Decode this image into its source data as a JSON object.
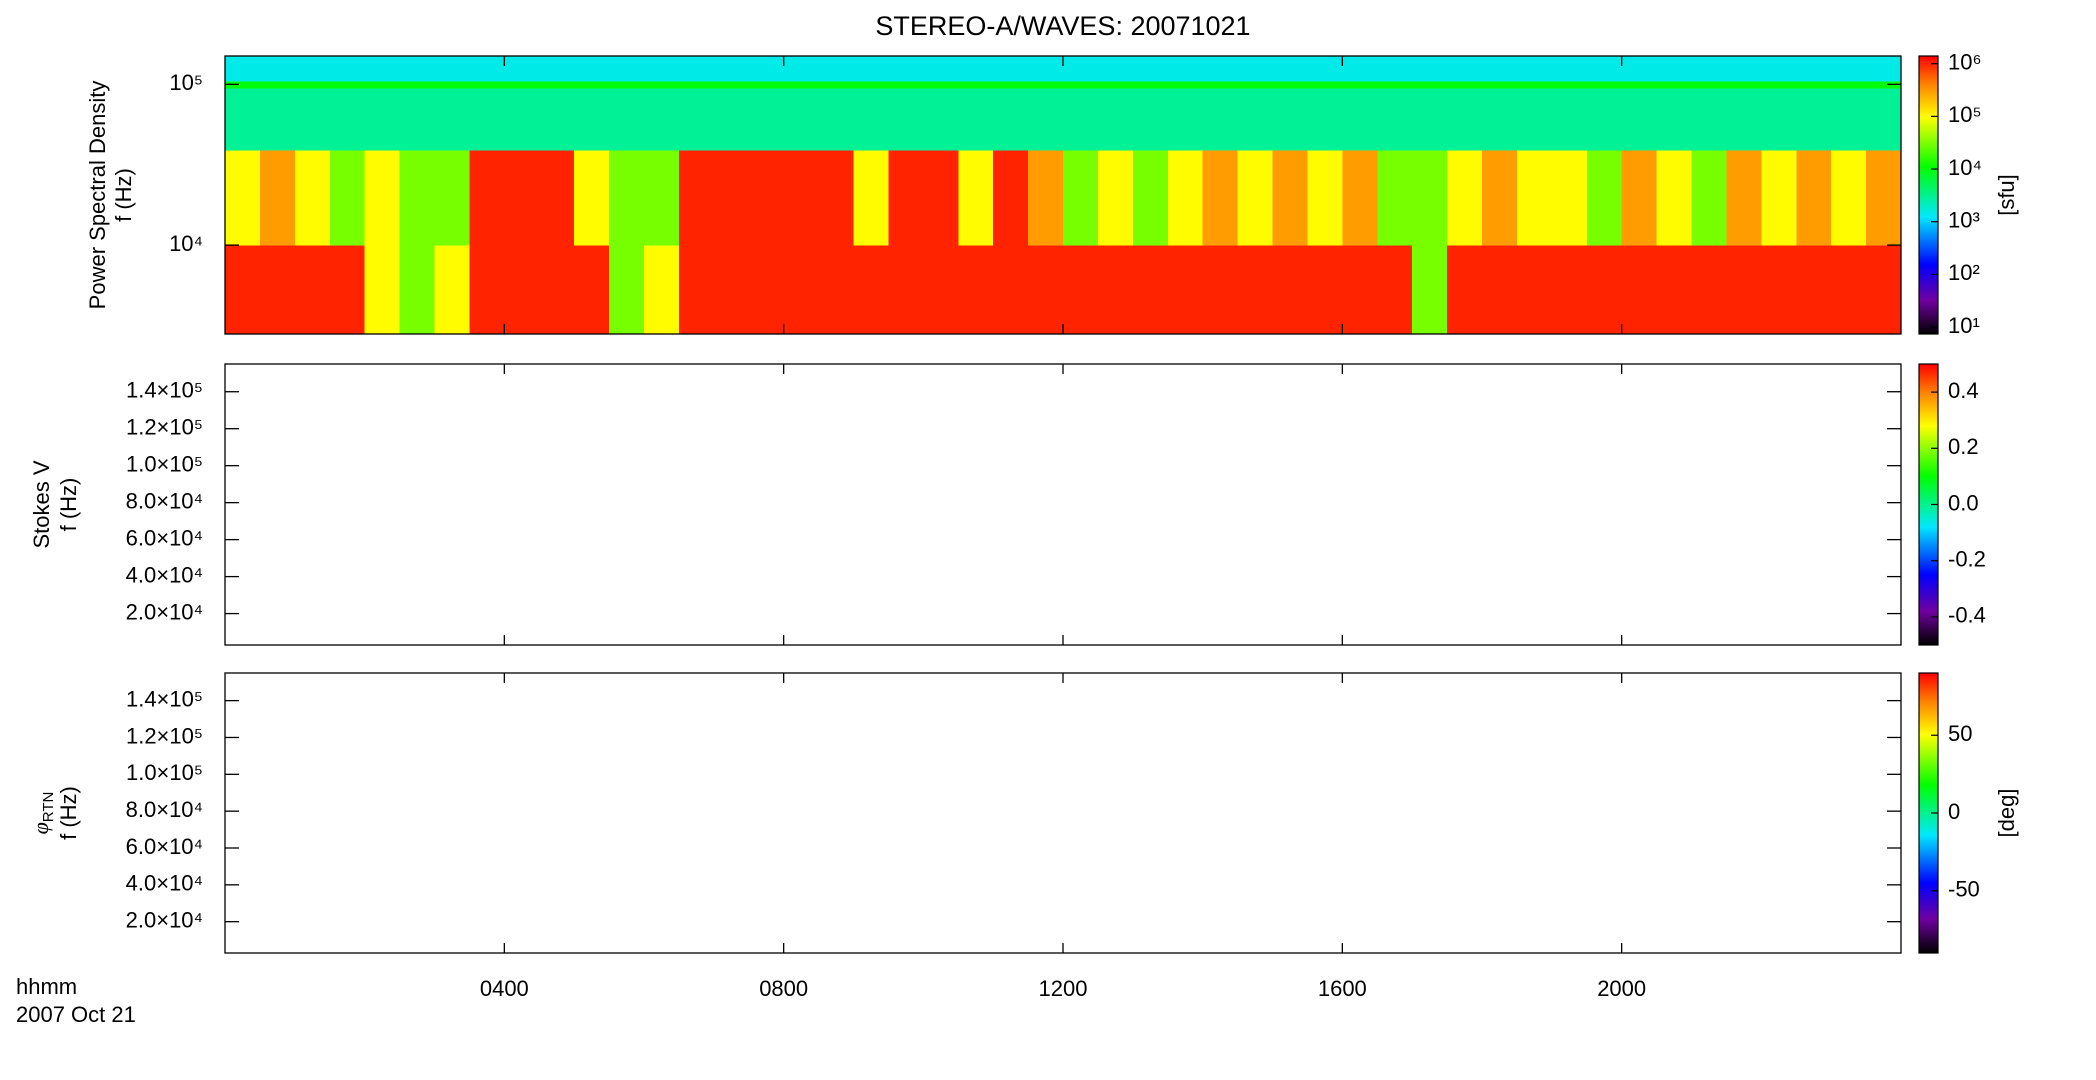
{
  "chart_data": [
    {
      "type": "heatmap",
      "title": "STEREO-A/WAVES: 20071021",
      "ylabel": "Power Spectral Density",
      "ylabel2": "f (Hz)",
      "zlabel": "[sfu]",
      "xlim": [
        0,
        24
      ],
      "xticks": [
        4,
        8,
        12,
        16,
        20
      ],
      "ylim": [
        2800,
        150000
      ],
      "ylog": true,
      "yticks": [
        {
          "value": 10000,
          "label": "10⁴"
        },
        {
          "value": 100000,
          "label": "10⁵"
        }
      ],
      "zlim": [
        7.4,
        1400000
      ],
      "zlog": true,
      "zticks": [
        {
          "value": 10,
          "label": "10¹"
        },
        {
          "value": 100,
          "label": "10²"
        },
        {
          "value": 1000,
          "label": "10³"
        },
        {
          "value": 10000,
          "label": "10⁴"
        },
        {
          "value": 100000,
          "label": "10⁵"
        },
        {
          "value": 1000000,
          "label": "10⁶"
        }
      ],
      "colormap": {
        "positions": [
          0,
          0.12,
          0.25,
          0.42,
          0.6,
          0.78,
          0.9,
          1
        ],
        "colors": [
          "#000000",
          "#7000a0",
          "#0000ff",
          "#00e8ff",
          "#00ff00",
          "#ffff00",
          "#ff8000",
          "#ff0000"
        ]
      },
      "x": [
        0,
        0.5,
        1,
        1.5,
        2,
        2.5,
        3,
        3.5,
        4,
        4.5,
        5,
        5.5,
        6,
        6.5,
        7,
        7.5,
        8,
        8.5,
        9,
        9.5,
        10,
        10.5,
        11,
        11.5,
        12,
        12.5,
        13,
        13.5,
        14,
        14.5,
        15,
        15.5,
        16,
        16.5,
        17,
        17.5,
        18,
        18.5,
        19,
        19.5,
        20,
        20.5,
        21,
        21.5,
        22,
        22.5,
        23,
        23.5,
        24
      ],
      "y": [
        2800,
        10000,
        39000,
        95000,
        105000,
        150000
      ],
      "z": [
        [
          1000000,
          1000000,
          1000000,
          1000000,
          100000,
          30000,
          100000,
          1000000,
          1000000,
          1000000,
          1000000,
          30000,
          100000,
          1000000,
          1000000,
          1000000,
          1000000,
          1000000,
          1000000,
          1000000,
          1000000,
          1000000,
          1000000,
          1000000,
          1000000,
          1000000,
          1000000,
          1000000,
          1000000,
          1000000,
          1000000,
          1000000,
          1000000,
          1000000,
          30000,
          1000000,
          1000000,
          1000000,
          1000000,
          1000000,
          1000000,
          1000000,
          1000000,
          1000000,
          1000000,
          1000000,
          1000000,
          1000000
        ],
        [
          100000,
          300000,
          100000,
          30000,
          100000,
          30000,
          30000,
          1000000,
          1000000,
          1000000,
          100000,
          30000,
          30000,
          1000000,
          1000000,
          1000000,
          1000000,
          1000000,
          100000,
          1000000,
          1000000,
          100000,
          1000000,
          300000,
          30000,
          100000,
          30000,
          100000,
          300000,
          100000,
          300000,
          100000,
          300000,
          30000,
          30000,
          100000,
          300000,
          100000,
          100000,
          30000,
          300000,
          100000,
          30000,
          300000,
          100000,
          300000,
          100000,
          300000
        ],
        [
          3000,
          3000,
          3000,
          3000,
          3000,
          3000,
          3000,
          3000,
          3000,
          3000,
          3000,
          3000,
          3000,
          3000,
          3000,
          3000,
          3000,
          3000,
          3000,
          3000,
          3000,
          3000,
          3000,
          3000,
          3000,
          3000,
          3000,
          3000,
          3000,
          3000,
          3000,
          3000,
          3000,
          3000,
          3000,
          3000,
          3000,
          3000,
          3000,
          3000,
          3000,
          3000,
          3000,
          3000,
          3000,
          3000,
          3000,
          3000
        ],
        [
          10000,
          10000,
          10000,
          10000,
          10000,
          10000,
          10000,
          10000,
          10000,
          10000,
          10000,
          10000,
          10000,
          10000,
          10000,
          10000,
          10000,
          10000,
          10000,
          10000,
          10000,
          10000,
          10000,
          10000,
          10000,
          10000,
          10000,
          10000,
          10000,
          10000,
          10000,
          10000,
          10000,
          10000,
          10000,
          10000,
          10000,
          10000,
          10000,
          10000,
          10000,
          10000,
          10000,
          10000,
          10000,
          10000,
          10000,
          10000
        ],
        [
          1500,
          1500,
          1500,
          1500,
          1500,
          1500,
          1500,
          1500,
          1500,
          1500,
          1500,
          1500,
          1500,
          1500,
          1500,
          1500,
          1500,
          1500,
          1500,
          1500,
          1500,
          1500,
          1500,
          1500,
          1500,
          1500,
          1500,
          1500,
          1500,
          1500,
          1500,
          1500,
          1500,
          1500,
          1500,
          1500,
          1500,
          1500,
          1500,
          1500,
          1500,
          1500,
          1500,
          1500,
          1500,
          1500,
          1500,
          1500
        ]
      ]
    },
    {
      "type": "heatmap",
      "ylabel": "Stokes V",
      "ylabel2": "f (Hz)",
      "xlim": [
        0,
        24
      ],
      "xticks": [
        4,
        8,
        12,
        16,
        20
      ],
      "ylim": [
        3000,
        155000
      ],
      "yticks": [
        {
          "value": 20000,
          "label": "2.0×10⁴"
        },
        {
          "value": 40000,
          "label": "4.0×10⁴"
        },
        {
          "value": 60000,
          "label": "6.0×10⁴"
        },
        {
          "value": 80000,
          "label": "8.0×10⁴"
        },
        {
          "value": 100000,
          "label": "1.0×10⁵"
        },
        {
          "value": 120000,
          "label": "1.2×10⁵"
        },
        {
          "value": 140000,
          "label": "1.4×10⁵"
        }
      ],
      "zlim": [
        -0.5,
        0.5
      ],
      "zticks": [
        -0.4,
        -0.2,
        {
          "value": 0,
          "label": "0.0"
        },
        0.2,
        0.4
      ],
      "colormap": {
        "positions": [
          0,
          0.12,
          0.25,
          0.42,
          0.6,
          0.78,
          0.9,
          1
        ],
        "colors": [
          "#000000",
          "#7000a0",
          "#0000ff",
          "#00e8ff",
          "#00ff00",
          "#ffff00",
          "#ff8000",
          "#ff0000"
        ]
      }
    },
    {
      "type": "heatmap",
      "ylabel": "φ",
      "ylabel_sub": "RTN",
      "ylabel2": "f (Hz)",
      "zlabel": "[deg]",
      "xlabel": "hhmm",
      "date": "2007 Oct 21",
      "xlim": [
        0,
        24
      ],
      "xticks": [
        {
          "value": 4,
          "label": "0400"
        },
        {
          "value": 8,
          "label": "0800"
        },
        {
          "value": 12,
          "label": "1200"
        },
        {
          "value": 16,
          "label": "1600"
        },
        {
          "value": 20,
          "label": "2000"
        }
      ],
      "ylim": [
        3000,
        155000
      ],
      "yticks": [
        {
          "value": 20000,
          "label": "2.0×10⁴"
        },
        {
          "value": 40000,
          "label": "4.0×10⁴"
        },
        {
          "value": 60000,
          "label": "6.0×10⁴"
        },
        {
          "value": 80000,
          "label": "8.0×10⁴"
        },
        {
          "value": 100000,
          "label": "1.0×10⁵"
        },
        {
          "value": 120000,
          "label": "1.2×10⁵"
        },
        {
          "value": 140000,
          "label": "1.4×10⁵"
        }
      ],
      "zlim": [
        -90,
        90
      ],
      "zticks": [
        -50,
        0,
        50
      ],
      "colormap": {
        "positions": [
          0,
          0.12,
          0.25,
          0.42,
          0.6,
          0.78,
          0.9,
          1
        ],
        "colors": [
          "#000000",
          "#7000a0",
          "#0000ff",
          "#00e8ff",
          "#00ff00",
          "#ffff00",
          "#ff8000",
          "#ff0000"
        ]
      }
    }
  ]
}
